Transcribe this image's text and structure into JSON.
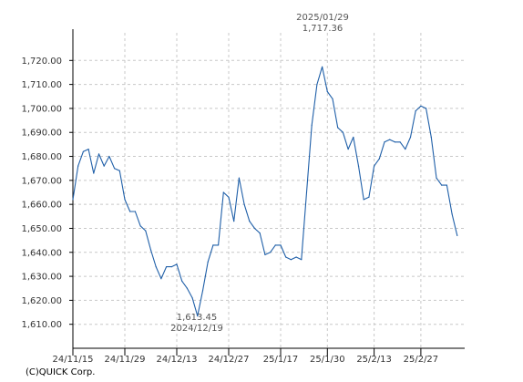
{
  "chart_data": {
    "type": "line",
    "title": "",
    "xlabel": "",
    "ylabel": "",
    "ylim": [
      1600,
      1730
    ],
    "y_ticks": [
      1610,
      1620,
      1630,
      1640,
      1650,
      1660,
      1670,
      1680,
      1690,
      1700,
      1710,
      1720
    ],
    "y_tick_labels": [
      "1,610.00",
      "1,620.00",
      "1,630.00",
      "1,640.00",
      "1,650.00",
      "1,660.00",
      "1,670.00",
      "1,680.00",
      "1,690.00",
      "1,700.00",
      "1,710.00",
      "1,720.00"
    ],
    "x_tick_labels": [
      "24/11/15",
      "24/11/29",
      "24/12/13",
      "24/12/27",
      "25/1/17",
      "25/1/30",
      "25/2/13",
      "25/2/27"
    ],
    "x_tick_indices": [
      0,
      10,
      20,
      30,
      40,
      49,
      58,
      67
    ],
    "grid": true,
    "colors": {
      "line": "#1f5fa8",
      "grid": "#c8c8c8",
      "axis": "#000000"
    },
    "series": [
      {
        "values": [
          1662,
          1676,
          1682,
          1683,
          1673,
          1681,
          1676,
          1680,
          1675,
          1674,
          1662,
          1657,
          1657,
          1651,
          1649,
          1641,
          1634,
          1629,
          1634,
          1634,
          1635,
          1628,
          1625,
          1621,
          1613.45,
          1624,
          1636,
          1643,
          1643,
          1665,
          1663,
          1653,
          1671,
          1660,
          1653,
          1650,
          1648,
          1639,
          1640,
          1643,
          1643,
          1638,
          1637,
          1638,
          1637,
          1665,
          1693,
          1710,
          1717.36,
          1707,
          1704,
          1692,
          1690,
          1683,
          1688,
          1676,
          1662,
          1663,
          1676,
          1679,
          1686,
          1687,
          1686,
          1686,
          1683,
          1688,
          1699,
          1701,
          1700,
          1688,
          1671,
          1668,
          1668,
          1656,
          1647
        ]
      }
    ],
    "annotations": {
      "high": {
        "date": "2025/01/29",
        "value": "1,717.36",
        "index": 48
      },
      "low": {
        "date": "2024/12/19",
        "value": "1,613.45",
        "index": 24
      }
    }
  },
  "footer": {
    "credit": "(C)QUICK Corp."
  }
}
